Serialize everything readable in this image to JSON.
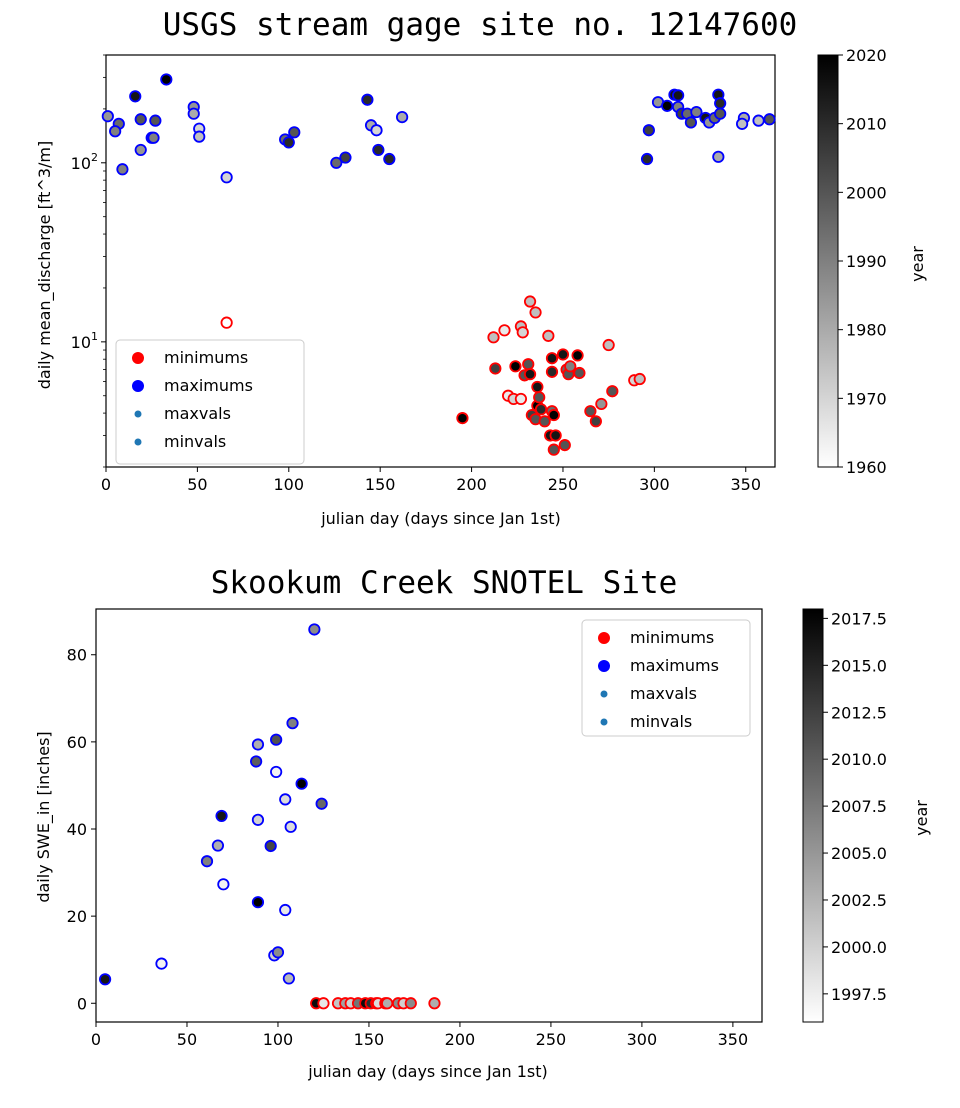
{
  "chart_data": [
    {
      "type": "scatter",
      "title": "USGS stream gage site no. 12147600",
      "xlabel": "julian day (days since Jan 1st)",
      "ylabel": "daily mean_discharge [ft^3/m]",
      "xlim": [
        0,
        366
      ],
      "ylim": [
        2.0,
        400
      ],
      "yscale": "log",
      "grid": false,
      "legend_position": "lower-left",
      "xticks": [
        0,
        50,
        100,
        150,
        200,
        250,
        300,
        350
      ],
      "yticks": [
        10,
        100
      ],
      "ytick_labels": [
        "10^1",
        "10^2"
      ],
      "legend": [
        {
          "label": "minimums",
          "color": "#ff0000",
          "marker": "large"
        },
        {
          "label": "maximums",
          "color": "#0000ff",
          "marker": "large"
        },
        {
          "label": "maxvals",
          "color": "#1f77b4",
          "marker": "small"
        },
        {
          "label": "minvals",
          "color": "#1f77b4",
          "marker": "small"
        }
      ],
      "colorbar": {
        "label": "year",
        "range": [
          1960,
          2020
        ],
        "ticks": [
          1960,
          1970,
          1980,
          1990,
          2000,
          2010,
          2020
        ],
        "tick_labels": [
          "1960",
          "1970",
          "1980",
          "1990",
          "2000",
          "2010",
          "2020"
        ]
      },
      "series": [
        {
          "name": "maximums",
          "edge_color": "#0000ff",
          "points": [
            [
              1,
              182,
              1985
            ],
            [
              7,
              165,
              1995
            ],
            [
              5,
              150,
              1990
            ],
            [
              9,
              92,
              1990
            ],
            [
              16,
              235,
              2015
            ],
            [
              19,
              175,
              2000
            ],
            [
              19,
              118,
              1985
            ],
            [
              25,
              138,
              1995
            ],
            [
              27,
              172,
              2000
            ],
            [
              26,
              138,
              1990
            ],
            [
              33,
              292,
              2020
            ],
            [
              48,
              205,
              1985
            ],
            [
              48,
              188,
              1980
            ],
            [
              51,
              155,
              1970
            ],
            [
              51,
              140,
              1975
            ],
            [
              66,
              83,
              1970
            ],
            [
              98,
              135,
              1995
            ],
            [
              100,
              130,
              2010
            ],
            [
              103,
              148,
              2000
            ],
            [
              126,
              100,
              1995
            ],
            [
              131,
              107,
              2005
            ],
            [
              143,
              225,
              2010
            ],
            [
              145,
              162,
              1980
            ],
            [
              148,
              152,
              1970
            ],
            [
              149,
              118,
              2010
            ],
            [
              155,
              105,
              2010
            ],
            [
              162,
              180,
              1980
            ],
            [
              297,
              152,
              2005
            ],
            [
              296,
              105,
              2010
            ],
            [
              302,
              218,
              1985
            ],
            [
              307,
              208,
              2020
            ],
            [
              311,
              240,
              2015
            ],
            [
              313,
              238,
              2015
            ],
            [
              313,
              205,
              1990
            ],
            [
              315,
              188,
              2005
            ],
            [
              318,
              188,
              1995
            ],
            [
              320,
              168,
              2000
            ],
            [
              323,
              192,
              1990
            ],
            [
              328,
              178,
              2015
            ],
            [
              330,
              168,
              1985
            ],
            [
              333,
              178,
              1995
            ],
            [
              335,
              108,
              1980
            ],
            [
              335,
              240,
              2015
            ],
            [
              336,
              215,
              2010
            ],
            [
              336,
              188,
              2000
            ],
            [
              349,
              178,
              1980
            ],
            [
              348,
              165,
              1975
            ],
            [
              357,
              172,
              1975
            ],
            [
              363,
              175,
              2000
            ]
          ]
        },
        {
          "name": "minimums",
          "edge_color": "#ff0000",
          "points": [
            [
              66,
              12.8,
              1960
            ],
            [
              195,
              3.75,
              2020
            ],
            [
              212,
              10.6,
              1975
            ],
            [
              213,
              7.1,
              2005
            ],
            [
              218,
              11.6,
              1965
            ],
            [
              220,
              5.0,
              1965
            ],
            [
              223,
              4.8,
              1970
            ],
            [
              224,
              7.3,
              2020
            ],
            [
              227,
              12.2,
              1975
            ],
            [
              228,
              11.3,
              1970
            ],
            [
              227,
              4.8,
              1965
            ],
            [
              229,
              6.5,
              2000
            ],
            [
              231,
              7.5,
              2000
            ],
            [
              232,
              16.8,
              1975
            ],
            [
              232,
              6.6,
              2015
            ],
            [
              233,
              3.9,
              2005
            ],
            [
              235,
              3.7,
              2000
            ],
            [
              235,
              14.6,
              1975
            ],
            [
              236,
              5.6,
              2015
            ],
            [
              236,
              4.4,
              2020
            ],
            [
              237,
              4.9,
              2000
            ],
            [
              238,
              4.2,
              2010
            ],
            [
              240,
              3.6,
              2000
            ],
            [
              242,
              10.8,
              1975
            ],
            [
              243,
              3.0,
              2015
            ],
            [
              244,
              8.1,
              2015
            ],
            [
              244,
              6.8,
              2010
            ],
            [
              244,
              4.1,
              1995
            ],
            [
              245,
              3.9,
              2020
            ],
            [
              245,
              2.5,
              2000
            ],
            [
              246,
              3.0,
              2015
            ],
            [
              250,
              8.5,
              2015
            ],
            [
              251,
              2.65,
              2000
            ],
            [
              252,
              7.0,
              1995
            ],
            [
              253,
              6.6,
              2000
            ],
            [
              254,
              7.3,
              1990
            ],
            [
              258,
              8.4,
              2020
            ],
            [
              259,
              6.7,
              2000
            ],
            [
              265,
              4.1,
              2000
            ],
            [
              268,
              3.6,
              2005
            ],
            [
              271,
              4.5,
              1985
            ],
            [
              275,
              9.6,
              1975
            ],
            [
              277,
              5.3,
              2000
            ],
            [
              289,
              6.1,
              1970
            ],
            [
              292,
              6.2,
              1975
            ]
          ]
        }
      ]
    },
    {
      "type": "scatter",
      "title": "Skookum Creek SNOTEL Site",
      "xlabel": "julian day (days since Jan 1st)",
      "ylabel": "daily SWE_in [inches]",
      "xlim": [
        0,
        366
      ],
      "ylim": [
        -4.3,
        90.5
      ],
      "grid": false,
      "legend_position": "upper-right",
      "xticks": [
        0,
        50,
        100,
        150,
        200,
        250,
        300,
        350
      ],
      "yticks": [
        0,
        20,
        40,
        60,
        80
      ],
      "legend": [
        {
          "label": "minimums",
          "color": "#ff0000",
          "marker": "large"
        },
        {
          "label": "maximums",
          "color": "#0000ff",
          "marker": "large"
        },
        {
          "label": "maxvals",
          "color": "#1f77b4",
          "marker": "small"
        },
        {
          "label": "minvals",
          "color": "#1f77b4",
          "marker": "small"
        }
      ],
      "colorbar": {
        "label": "year",
        "range": [
          1996,
          2018
        ],
        "ticks": [
          1997.5,
          2000.0,
          2002.5,
          2005.0,
          2007.5,
          2010.0,
          2012.5,
          2015.0,
          2017.5
        ],
        "tick_labels": [
          "1997.5",
          "2000.0",
          "2002.5",
          "2005.0",
          "2007.5",
          "2010.0",
          "2012.5",
          "2015.0",
          "2017.5"
        ]
      },
      "series": [
        {
          "name": "maximums",
          "edge_color": "#0000ff",
          "points": [
            [
              5,
              5.5,
              2016
            ],
            [
              36,
              9.1,
              1997
            ],
            [
              61,
              32.6,
              2007
            ],
            [
              67,
              36.2,
              2003
            ],
            [
              69,
              43.0,
              2016
            ],
            [
              70,
              27.3,
              1997
            ],
            [
              88,
              55.5,
              2010
            ],
            [
              89,
              59.4,
              2003
            ],
            [
              89,
              42.1,
              2000
            ],
            [
              89,
              23.2,
              2018
            ],
            [
              96,
              36.1,
              2012
            ],
            [
              98,
              11.0,
              2000
            ],
            [
              99,
              60.5,
              2011
            ],
            [
              99,
              53.1,
              1997
            ],
            [
              100,
              11.7,
              2006
            ],
            [
              104,
              46.8,
              1999
            ],
            [
              104,
              21.4,
              1998
            ],
            [
              106,
              5.7,
              2002
            ],
            [
              107,
              40.5,
              1999
            ],
            [
              108,
              64.3,
              2007
            ],
            [
              113,
              50.4,
              2018
            ],
            [
              120,
              85.8,
              2006
            ],
            [
              124,
              45.8,
              2009
            ]
          ]
        },
        {
          "name": "minimums",
          "edge_color": "#ff0000",
          "points": [
            [
              121,
              0,
              2017
            ],
            [
              125,
              0,
              1998
            ],
            [
              133,
              0,
              2001
            ],
            [
              137,
              0,
              2004
            ],
            [
              140,
              0,
              2000
            ],
            [
              144,
              0,
              2008
            ],
            [
              148,
              0,
              2017
            ],
            [
              151,
              0,
              2014
            ],
            [
              154,
              0,
              2018
            ],
            [
              155,
              0,
              1999
            ],
            [
              159,
              0,
              2010
            ],
            [
              160,
              0,
              2003
            ],
            [
              166,
              0,
              2006
            ],
            [
              169,
              0,
              2000
            ],
            [
              173,
              0,
              2006
            ],
            [
              186,
              0,
              2003
            ]
          ]
        }
      ]
    }
  ]
}
